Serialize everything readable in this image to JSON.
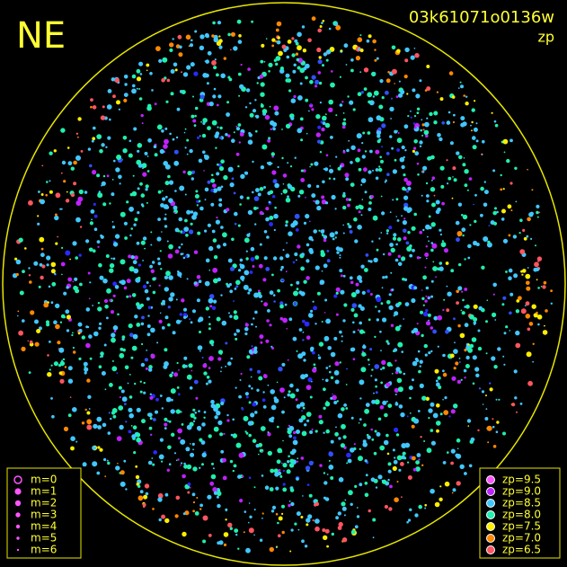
{
  "header": {
    "station": "NE",
    "image_id": "03k61071o0136w",
    "mode": "zp"
  },
  "size_legend": {
    "labels": [
      "m=0",
      "m=1",
      "m=2",
      "m=3",
      "m=4",
      "m=5",
      "m=6"
    ]
  },
  "color_legend": {
    "labels": [
      "zp=9.5",
      "zp=9.0",
      "zp=8.5",
      "zp=8.0",
      "zp=7.5",
      "zp=7.0",
      "zp=6.5"
    ],
    "colors": [
      "#ff55ff",
      "#c022ff",
      "#40c8ff",
      "#20f0b0",
      "#ffee00",
      "#ff8800",
      "#ff5560"
    ]
  }
}
